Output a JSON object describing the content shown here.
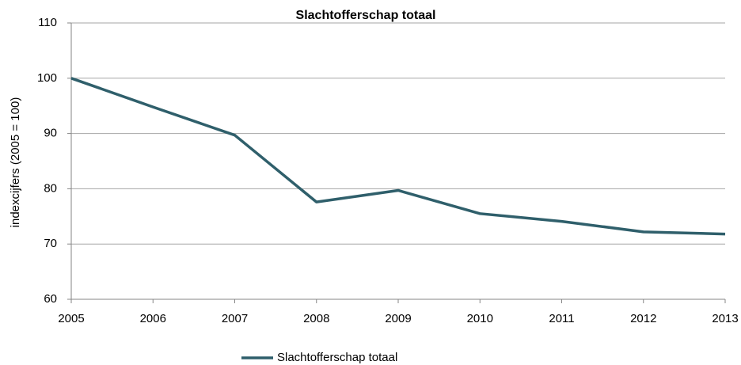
{
  "chart_data": {
    "type": "line",
    "title": "Slachtofferschap totaal",
    "y_label": "indexcijfers (2005 = 100)",
    "categories": [
      "2005",
      "2006",
      "2007",
      "2008",
      "2009",
      "2010",
      "2011",
      "2012",
      "2013"
    ],
    "series": [
      {
        "name": "Slachtofferschap totaal",
        "color": "#2f5f6b",
        "values": [
          100,
          94.8,
          89.7,
          77.6,
          79.7,
          75.5,
          74.1,
          72.2,
          71.8
        ]
      }
    ],
    "ylim": [
      60,
      110
    ],
    "yticks": [
      60,
      70,
      80,
      90,
      100,
      110
    ],
    "grid": true,
    "legend": "bottom"
  }
}
